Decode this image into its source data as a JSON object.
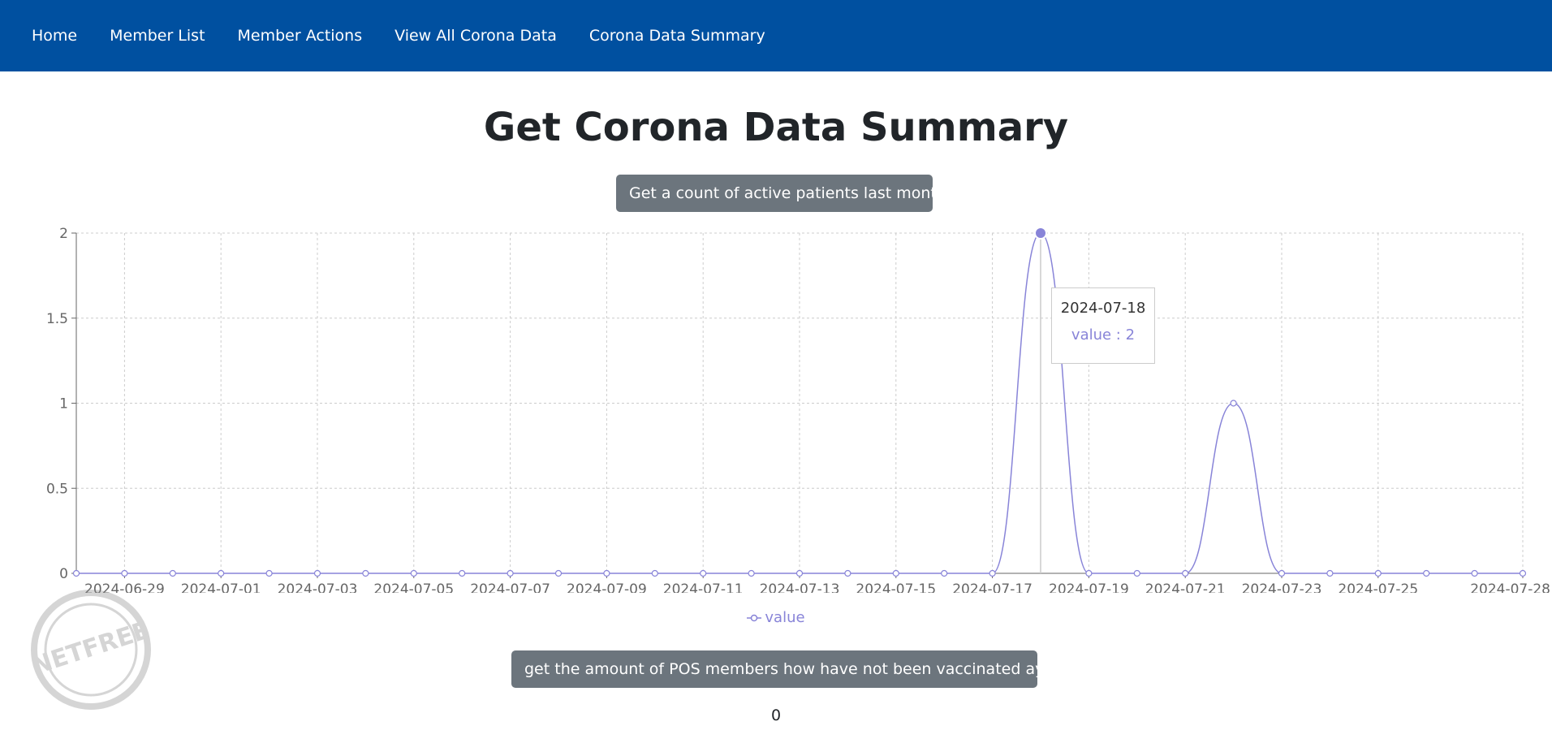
{
  "nav": {
    "items": [
      "Home",
      "Member List",
      "Member Actions",
      "View All Corona Data",
      "Corona Data Summary"
    ]
  },
  "page": {
    "title": "Get Corona Data Summary"
  },
  "buttons": {
    "active_patients": "Get a count of active patients last month",
    "unvaccinated": "get the amount of POS members how have not been vaccinated ay all"
  },
  "result": {
    "value": "0"
  },
  "tooltip": {
    "date": "2024-07-18",
    "label": "value : 2"
  },
  "watermark": {
    "text": "NETFREE"
  },
  "chart_data": {
    "type": "line",
    "x": [
      "2024-06-28",
      "2024-06-29",
      "2024-06-30",
      "2024-07-01",
      "2024-07-02",
      "2024-07-03",
      "2024-07-04",
      "2024-07-05",
      "2024-07-06",
      "2024-07-07",
      "2024-07-08",
      "2024-07-09",
      "2024-07-10",
      "2024-07-11",
      "2024-07-12",
      "2024-07-13",
      "2024-07-14",
      "2024-07-15",
      "2024-07-16",
      "2024-07-17",
      "2024-07-18",
      "2024-07-19",
      "2024-07-20",
      "2024-07-21",
      "2024-07-22",
      "2024-07-23",
      "2024-07-24",
      "2024-07-25",
      "2024-07-26",
      "2024-07-27",
      "2024-07-28"
    ],
    "series": [
      {
        "name": "value",
        "values": [
          0,
          0,
          0,
          0,
          0,
          0,
          0,
          0,
          0,
          0,
          0,
          0,
          0,
          0,
          0,
          0,
          0,
          0,
          0,
          0,
          2,
          0,
          0,
          0,
          1,
          0,
          0,
          0,
          0,
          0,
          0
        ]
      }
    ],
    "x_tick_labels": [
      "2024-06-29",
      "2024-07-01",
      "2024-07-03",
      "2024-07-05",
      "2024-07-07",
      "2024-07-09",
      "2024-07-11",
      "2024-07-13",
      "2024-07-15",
      "2024-07-17",
      "2024-07-19",
      "2024-07-21",
      "2024-07-23",
      "2024-07-25",
      "2024-07-28"
    ],
    "y_ticks": [
      "0",
      "0.5",
      "1",
      "1.5",
      "2"
    ],
    "ylim": [
      0,
      2
    ],
    "grid": true,
    "legend": "bottom-center",
    "line_color": "#8884d8",
    "active_point": "2024-07-18"
  }
}
